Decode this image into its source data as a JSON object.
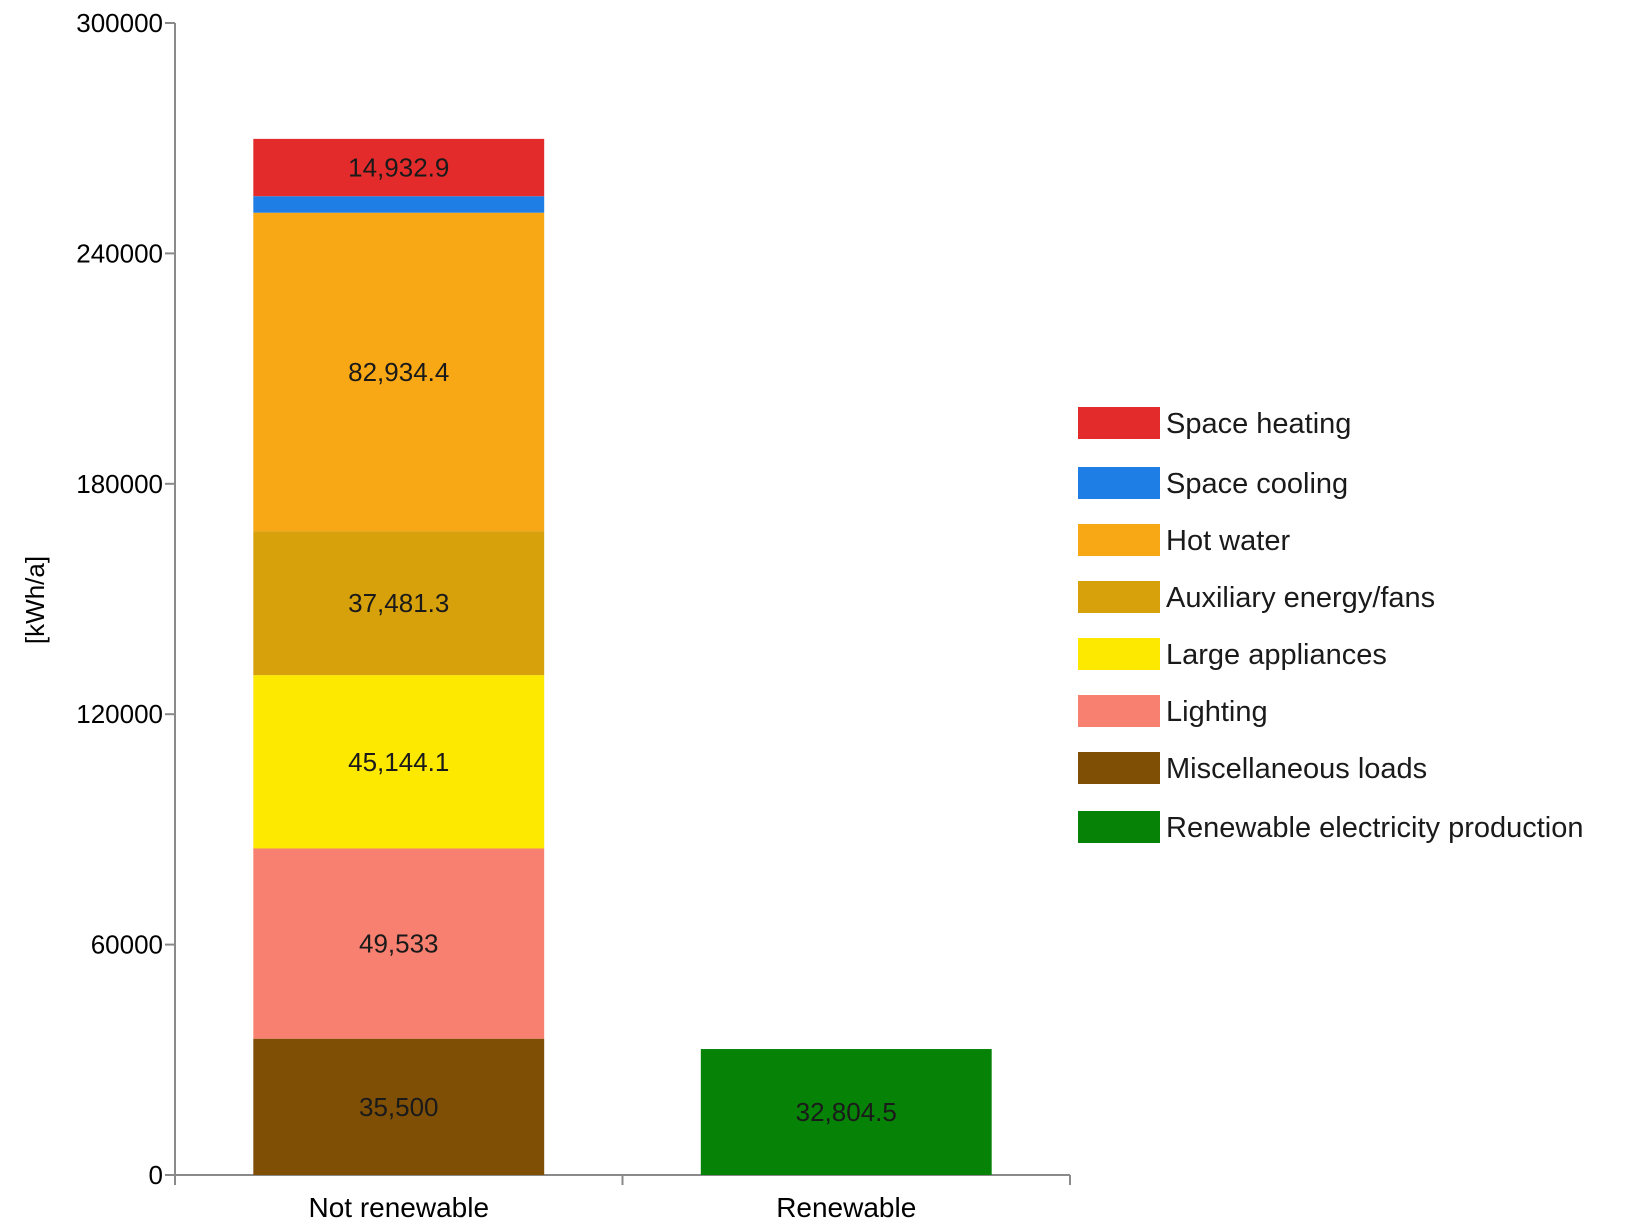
{
  "chart_data": {
    "type": "bar",
    "stacked": true,
    "title": "",
    "xlabel": "",
    "ylabel": "[kWh/a]",
    "ylim": [
      0,
      300000
    ],
    "yticks": [
      0,
      60000,
      120000,
      180000,
      240000,
      300000
    ],
    "ytick_labels": [
      "0",
      "60000",
      "120000",
      "180000",
      "240000",
      "300000"
    ],
    "categories": [
      "Not renewable",
      "Renewable"
    ],
    "series": [
      {
        "name": "Space heating",
        "color": "#e32b2b",
        "values": [
          14932.9,
          0
        ],
        "labels": [
          "14,932.9",
          ""
        ]
      },
      {
        "name": "Space cooling",
        "color": "#1e7ee6",
        "values": [
          4300,
          0
        ],
        "labels": [
          "",
          ""
        ]
      },
      {
        "name": "Hot water",
        "color": "#f8a814",
        "values": [
          82934.4,
          0
        ],
        "labels": [
          "82,934.4",
          ""
        ]
      },
      {
        "name": "Auxiliary energy/fans",
        "color": "#d7a10b",
        "values": [
          37481.3,
          0
        ],
        "labels": [
          "37,481.3",
          ""
        ]
      },
      {
        "name": "Large appliances",
        "color": "#fde800",
        "values": [
          45144.1,
          0
        ],
        "labels": [
          "45,144.1",
          ""
        ]
      },
      {
        "name": "Lighting",
        "color": "#f88070",
        "values": [
          49533,
          0
        ],
        "labels": [
          "49,533",
          ""
        ]
      },
      {
        "name": "Miscellaneous loads",
        "color": "#7f4f06",
        "values": [
          35500,
          0
        ],
        "labels": [
          "35,500",
          ""
        ]
      },
      {
        "name": "Renewable electricity production",
        "color": "#068206",
        "values": [
          0,
          32804.5
        ],
        "labels": [
          "",
          "32,804.5"
        ]
      }
    ],
    "stack_order_bottom_to_top": [
      "Miscellaneous loads",
      "Lighting",
      "Large appliances",
      "Auxiliary energy/fans",
      "Hot water",
      "Space cooling",
      "Space heating",
      "Renewable electricity production"
    ],
    "legend": "right",
    "grid": false
  }
}
